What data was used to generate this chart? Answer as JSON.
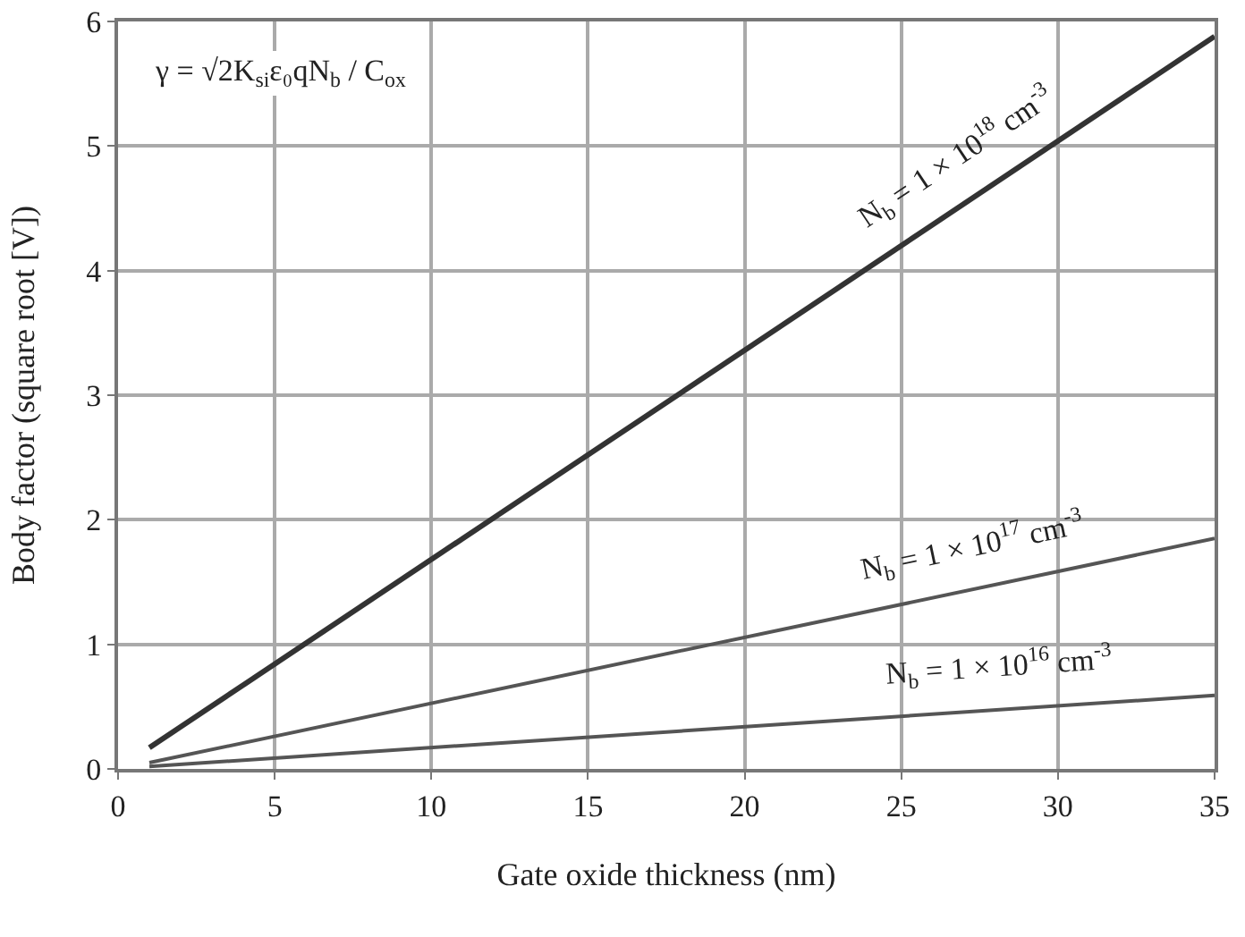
{
  "chart_data": {
    "type": "line",
    "xlabel": "Gate oxide thickness (nm)",
    "ylabel": "Body factor (square root [V])",
    "x": [
      1,
      35
    ],
    "series": [
      {
        "name": "N$_{b}$ = 1 × 10$^{18}$ cm$^{-3}$",
        "color": "#333333",
        "values": [
          0.17,
          5.88
        ]
      },
      {
        "name": "N$_{b}$ = 1 × 10$^{17}$ cm$^{-3}$",
        "color": "#555555",
        "values": [
          0.05,
          1.85
        ]
      },
      {
        "name": "N$_{b}$ = 1 × 10$^{16}$ cm$^{-3}$",
        "color": "#555555",
        "values": [
          0.02,
          0.59
        ]
      }
    ],
    "annotations": [
      "γ = √2K$_{si}$ε₀qN$_{b}$ / C$_{ox}$"
    ],
    "xlim": [
      0,
      35
    ],
    "xticks": [
      0,
      5,
      10,
      15,
      20,
      25,
      30,
      35
    ],
    "ylim": [
      0,
      6
    ],
    "yticks": [
      0,
      1,
      2,
      3,
      4,
      5,
      6
    ],
    "grid": true,
    "legend": false,
    "marker": "none",
    "line_style": "solid"
  }
}
